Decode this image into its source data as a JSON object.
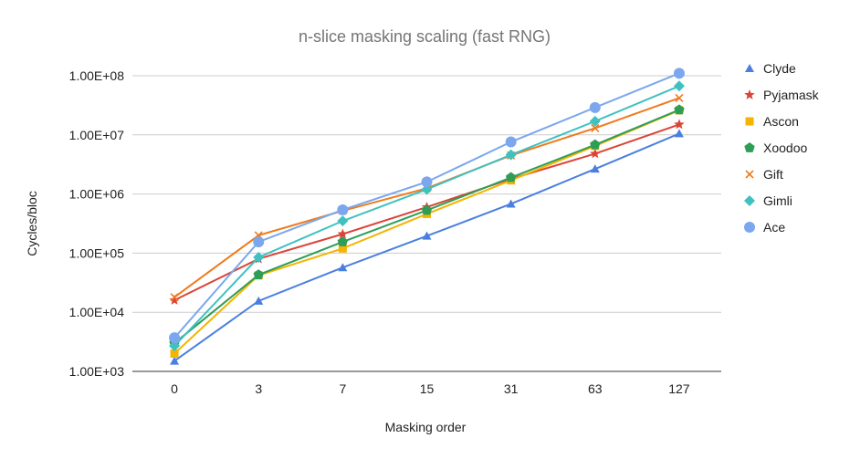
{
  "chart_data": {
    "type": "line",
    "title": "n-slice masking scaling (fast RNG)",
    "xlabel": "Masking order",
    "ylabel": "Cycles/bloc",
    "yscale": "log",
    "ylim": [
      1000,
      100000000
    ],
    "yticks": [
      {
        "value": 1000,
        "label": "1.00E+03"
      },
      {
        "value": 10000,
        "label": "1.00E+04"
      },
      {
        "value": 100000,
        "label": "1.00E+05"
      },
      {
        "value": 1000000,
        "label": "1.00E+06"
      },
      {
        "value": 10000000,
        "label": "1.00E+07"
      },
      {
        "value": 100000000,
        "label": "1.00E+08"
      }
    ],
    "categories": [
      "0",
      "3",
      "7",
      "15",
      "31",
      "63",
      "127"
    ],
    "grid": true,
    "legend_position": "right",
    "series": [
      {
        "name": "Clyde",
        "color": "#4a7fe0",
        "marker": "triangle",
        "values": [
          1500,
          15500,
          57000,
          195000,
          680000,
          2650000,
          10500000
        ]
      },
      {
        "name": "Pyjamask",
        "color": "#db4437",
        "marker": "star",
        "values": [
          16000,
          80000,
          210000,
          600000,
          1800000,
          4800000,
          15000000
        ]
      },
      {
        "name": "Ascon",
        "color": "#f4b400",
        "marker": "square",
        "values": [
          2000,
          42000,
          120000,
          460000,
          1700000,
          6500000,
          26000000
        ]
      },
      {
        "name": "Xoodoo",
        "color": "#2e9e57",
        "marker": "pentagon",
        "values": [
          3000,
          43000,
          155000,
          530000,
          1900000,
          6800000,
          26500000
        ]
      },
      {
        "name": "Gift",
        "color": "#f07a1c",
        "marker": "x",
        "values": [
          18000,
          200000,
          520000,
          1250000,
          4500000,
          13000000,
          42000000
        ]
      },
      {
        "name": "Gimli",
        "color": "#3fc1c0",
        "marker": "diamond",
        "values": [
          2700,
          85000,
          350000,
          1200000,
          4600000,
          17000000,
          67000000
        ]
      },
      {
        "name": "Ace",
        "color": "#7ba7ee",
        "marker": "circle",
        "values": [
          3700,
          155000,
          540000,
          1600000,
          7600000,
          29000000,
          110000000
        ]
      }
    ]
  }
}
